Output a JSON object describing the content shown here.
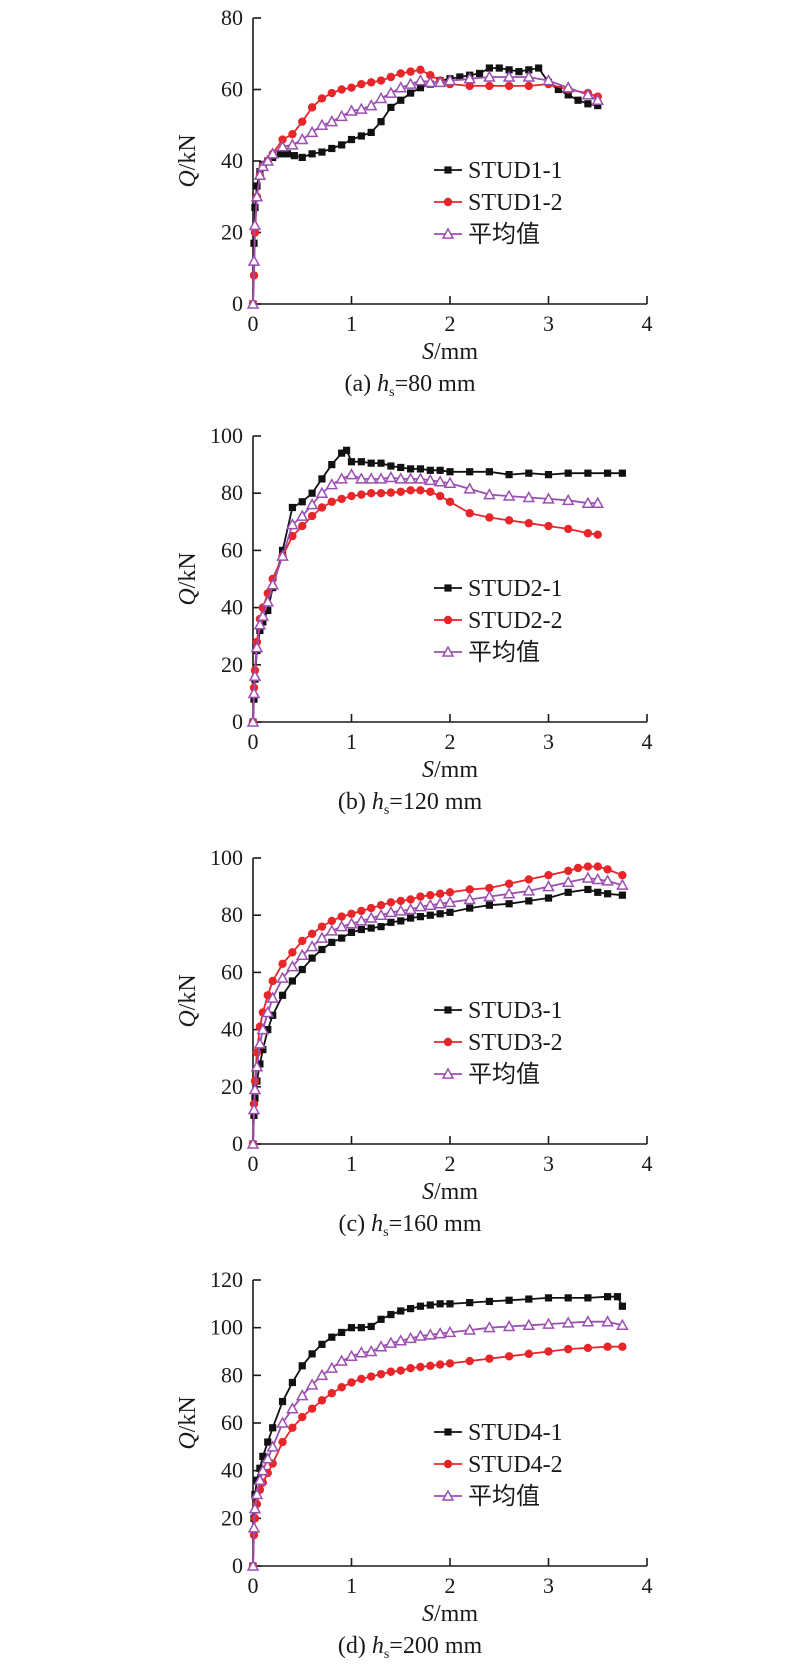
{
  "chart_data": [
    {
      "type": "line",
      "caption_prefix": "(a) ",
      "caption_var": "h",
      "caption_sub": "s",
      "caption_rest": "=80 mm",
      "xlabel_var": "S",
      "xlabel_unit": "/mm",
      "ylabel_var": "Q",
      "ylabel_unit": "/kN",
      "xlim": [
        0,
        4
      ],
      "ylim": [
        0,
        80
      ],
      "xticks": [
        0,
        1,
        2,
        3,
        4
      ],
      "yticks": [
        0,
        20,
        40,
        60,
        80
      ],
      "grid": false,
      "legend_position": "bottom-right",
      "series": [
        {
          "name": "STUD1-1",
          "color": "#111111",
          "marker": "square",
          "x": [
            0,
            0.01,
            0.02,
            0.04,
            0.07,
            0.1,
            0.15,
            0.2,
            0.28,
            0.35,
            0.42,
            0.5,
            0.6,
            0.7,
            0.8,
            0.9,
            1.0,
            1.1,
            1.2,
            1.3,
            1.4,
            1.5,
            1.6,
            1.7,
            1.8,
            1.9,
            2.0,
            2.1,
            2.2,
            2.3,
            2.4,
            2.5,
            2.6,
            2.7,
            2.8,
            2.9,
            3.0,
            3.1,
            3.2,
            3.3,
            3.4,
            3.5
          ],
          "y": [
            0,
            17,
            27,
            33,
            37,
            39,
            40,
            41,
            42,
            42,
            41.5,
            41,
            42,
            42.5,
            43.5,
            44.5,
            46,
            47,
            48,
            51,
            55,
            57,
            59,
            60.5,
            61.5,
            62.5,
            63,
            63.5,
            64,
            64.5,
            66,
            66,
            65.5,
            65,
            65.5,
            66,
            62,
            60,
            58.5,
            57,
            56,
            55.5
          ]
        },
        {
          "name": "STUD1-2",
          "color": "#e8262a",
          "marker": "circle",
          "x": [
            0,
            0.01,
            0.02,
            0.04,
            0.07,
            0.1,
            0.15,
            0.2,
            0.3,
            0.4,
            0.5,
            0.6,
            0.7,
            0.8,
            0.9,
            1.0,
            1.1,
            1.2,
            1.3,
            1.4,
            1.5,
            1.6,
            1.7,
            1.8,
            1.9,
            2.0,
            2.2,
            2.4,
            2.6,
            2.8,
            3.0,
            3.2,
            3.4,
            3.5
          ],
          "y": [
            0,
            8,
            20,
            30,
            36,
            38.5,
            40,
            42,
            46,
            47.5,
            51,
            55,
            57.5,
            59,
            60,
            60.5,
            61.5,
            62,
            62.5,
            63.5,
            64.5,
            65,
            65.5,
            64,
            62.5,
            61.5,
            61,
            61,
            61,
            61,
            61.5,
            60,
            59,
            58
          ]
        },
        {
          "name": "平均值",
          "color": "#9b4fb0",
          "marker": "triangle",
          "x": [
            0,
            0.01,
            0.02,
            0.04,
            0.07,
            0.1,
            0.15,
            0.2,
            0.3,
            0.4,
            0.5,
            0.6,
            0.7,
            0.8,
            0.9,
            1.0,
            1.1,
            1.2,
            1.3,
            1.4,
            1.5,
            1.6,
            1.7,
            1.8,
            1.9,
            2.0,
            2.2,
            2.4,
            2.6,
            2.8,
            3.0,
            3.2,
            3.4,
            3.5
          ],
          "y": [
            0,
            12,
            22,
            30,
            36,
            38.5,
            40,
            42,
            44,
            44.5,
            46,
            48,
            50,
            51,
            52.5,
            54,
            54.5,
            55.5,
            57.5,
            59,
            60.5,
            61.5,
            62.5,
            62,
            62,
            62.5,
            63,
            63.5,
            63.5,
            63.5,
            62.5,
            60.5,
            58.5,
            57
          ]
        }
      ]
    },
    {
      "type": "line",
      "caption_prefix": "(b) ",
      "caption_var": "h",
      "caption_sub": "s",
      "caption_rest": "=120 mm",
      "xlabel_var": "S",
      "xlabel_unit": "/mm",
      "ylabel_var": "Q",
      "ylabel_unit": "/kN",
      "xlim": [
        0,
        4
      ],
      "ylim": [
        0,
        100
      ],
      "xticks": [
        0,
        1,
        2,
        3,
        4
      ],
      "yticks": [
        0,
        20,
        40,
        60,
        80,
        100
      ],
      "grid": false,
      "legend_position": "bottom-right",
      "series": [
        {
          "name": "STUD2-1",
          "color": "#111111",
          "marker": "square",
          "x": [
            0,
            0.01,
            0.02,
            0.04,
            0.07,
            0.1,
            0.15,
            0.2,
            0.3,
            0.4,
            0.5,
            0.6,
            0.7,
            0.8,
            0.9,
            0.95,
            1.0,
            1.1,
            1.2,
            1.3,
            1.4,
            1.5,
            1.6,
            1.7,
            1.8,
            1.9,
            2.0,
            2.2,
            2.4,
            2.6,
            2.8,
            3.0,
            3.2,
            3.4,
            3.6,
            3.75
          ],
          "y": [
            0,
            8,
            15,
            25,
            32,
            35,
            39,
            47,
            60,
            75,
            77,
            80,
            85,
            90,
            94,
            95,
            91,
            91,
            90.5,
            90.5,
            89.5,
            89,
            88.5,
            88.5,
            88,
            88,
            87.5,
            87.5,
            87.5,
            86.5,
            87,
            86.5,
            87,
            87,
            87,
            87
          ]
        },
        {
          "name": "STUD2-2",
          "color": "#e8262a",
          "marker": "circle",
          "x": [
            0,
            0.01,
            0.02,
            0.04,
            0.07,
            0.1,
            0.15,
            0.2,
            0.3,
            0.4,
            0.5,
            0.6,
            0.7,
            0.8,
            0.9,
            1.0,
            1.1,
            1.2,
            1.3,
            1.4,
            1.5,
            1.6,
            1.7,
            1.8,
            1.9,
            2.0,
            2.2,
            2.4,
            2.6,
            2.8,
            3.0,
            3.2,
            3.4,
            3.5
          ],
          "y": [
            0,
            12,
            18,
            28,
            36,
            40,
            45,
            50,
            58,
            65,
            68.5,
            72,
            75,
            77,
            78,
            79,
            79.5,
            80,
            80,
            80.2,
            80.5,
            81,
            81,
            80.5,
            79,
            77,
            73,
            71.5,
            70.5,
            69.5,
            68.5,
            67.5,
            66,
            65.5
          ]
        },
        {
          "name": "平均值",
          "color": "#9b4fb0",
          "marker": "triangle",
          "x": [
            0,
            0.01,
            0.02,
            0.04,
            0.07,
            0.1,
            0.15,
            0.2,
            0.3,
            0.4,
            0.5,
            0.6,
            0.7,
            0.8,
            0.9,
            1.0,
            1.1,
            1.2,
            1.3,
            1.4,
            1.5,
            1.6,
            1.7,
            1.8,
            1.9,
            2.0,
            2.2,
            2.4,
            2.6,
            2.8,
            3.0,
            3.2,
            3.4,
            3.5
          ],
          "y": [
            0,
            10,
            16,
            26,
            34,
            37,
            42,
            48,
            58,
            69,
            72,
            76,
            80,
            83,
            85,
            86.5,
            85,
            85,
            85,
            85.5,
            85,
            85,
            85,
            84.5,
            84,
            83.5,
            81.5,
            79.5,
            79,
            78.5,
            78,
            77.5,
            76.5,
            76.5
          ]
        }
      ]
    },
    {
      "type": "line",
      "caption_prefix": "(c) ",
      "caption_var": "h",
      "caption_sub": "s",
      "caption_rest": "=160 mm",
      "xlabel_var": "S",
      "xlabel_unit": "/mm",
      "ylabel_var": "Q",
      "ylabel_unit": "/kN",
      "xlim": [
        0,
        4
      ],
      "ylim": [
        0,
        100
      ],
      "xticks": [
        0,
        1,
        2,
        3,
        4
      ],
      "yticks": [
        0,
        20,
        40,
        60,
        80,
        100
      ],
      "grid": false,
      "legend_position": "bottom-right",
      "series": [
        {
          "name": "STUD3-1",
          "color": "#111111",
          "marker": "square",
          "x": [
            0,
            0.01,
            0.02,
            0.04,
            0.07,
            0.1,
            0.15,
            0.2,
            0.3,
            0.4,
            0.5,
            0.6,
            0.7,
            0.8,
            0.9,
            1.0,
            1.1,
            1.2,
            1.3,
            1.4,
            1.5,
            1.6,
            1.7,
            1.8,
            1.9,
            2.0,
            2.2,
            2.4,
            2.6,
            2.8,
            3.0,
            3.2,
            3.4,
            3.5,
            3.6,
            3.75
          ],
          "y": [
            0,
            10,
            16,
            22,
            28,
            33,
            40,
            45,
            52,
            57,
            61,
            65,
            68,
            70.5,
            72,
            74,
            75,
            75.5,
            76,
            77.5,
            78,
            79,
            79.5,
            80,
            80.5,
            81,
            82.5,
            83.5,
            84,
            85,
            86,
            88,
            89,
            88,
            87.5,
            87
          ]
        },
        {
          "name": "STUD3-2",
          "color": "#e8262a",
          "marker": "circle",
          "x": [
            0,
            0.01,
            0.02,
            0.04,
            0.07,
            0.1,
            0.15,
            0.2,
            0.3,
            0.4,
            0.5,
            0.6,
            0.7,
            0.8,
            0.9,
            1.0,
            1.1,
            1.2,
            1.3,
            1.4,
            1.5,
            1.6,
            1.7,
            1.8,
            1.9,
            2.0,
            2.2,
            2.4,
            2.6,
            2.8,
            3.0,
            3.2,
            3.3,
            3.4,
            3.5,
            3.6,
            3.75
          ],
          "y": [
            0,
            14,
            22,
            32,
            41,
            46,
            52,
            57,
            63,
            67,
            71,
            73.5,
            76,
            78,
            79.5,
            80.5,
            81.5,
            82.5,
            83.5,
            84.5,
            85,
            85.5,
            86.5,
            87,
            87.5,
            88,
            89,
            89.5,
            91,
            92.5,
            94,
            95.5,
            96.5,
            97,
            97,
            96,
            94
          ]
        },
        {
          "name": "平均值",
          "color": "#9b4fb0",
          "marker": "triangle",
          "x": [
            0,
            0.01,
            0.02,
            0.04,
            0.07,
            0.1,
            0.15,
            0.2,
            0.3,
            0.4,
            0.5,
            0.6,
            0.7,
            0.8,
            0.9,
            1.0,
            1.1,
            1.2,
            1.3,
            1.4,
            1.5,
            1.6,
            1.7,
            1.8,
            1.9,
            2.0,
            2.2,
            2.4,
            2.6,
            2.8,
            3.0,
            3.2,
            3.4,
            3.5,
            3.6,
            3.75
          ],
          "y": [
            0,
            12,
            19,
            27,
            35,
            40,
            46,
            51,
            58,
            62,
            66,
            69,
            72,
            74.5,
            76,
            77,
            78,
            79,
            80,
            81,
            81.5,
            82,
            83,
            83.5,
            84,
            84.5,
            85.5,
            86.5,
            87.5,
            88.5,
            90,
            91.5,
            93,
            92.5,
            92,
            90.5
          ]
        }
      ]
    },
    {
      "type": "line",
      "caption_prefix": "(d) ",
      "caption_var": "h",
      "caption_sub": "s",
      "caption_rest": "=200 mm",
      "xlabel_var": "S",
      "xlabel_unit": "/mm",
      "ylabel_var": "Q",
      "ylabel_unit": "/kN",
      "xlim": [
        0,
        4
      ],
      "ylim": [
        0,
        120
      ],
      "xticks": [
        0,
        1,
        2,
        3,
        4
      ],
      "yticks": [
        0,
        20,
        40,
        60,
        80,
        100,
        120
      ],
      "grid": false,
      "legend_position": "bottom-right",
      "series": [
        {
          "name": "STUD4-1",
          "color": "#111111",
          "marker": "square",
          "x": [
            0,
            0.01,
            0.02,
            0.04,
            0.07,
            0.1,
            0.15,
            0.2,
            0.3,
            0.4,
            0.5,
            0.6,
            0.7,
            0.8,
            0.9,
            1.0,
            1.1,
            1.2,
            1.3,
            1.4,
            1.5,
            1.6,
            1.7,
            1.8,
            1.9,
            2.0,
            2.2,
            2.4,
            2.6,
            2.8,
            3.0,
            3.2,
            3.4,
            3.6,
            3.7,
            3.75
          ],
          "y": [
            0,
            20,
            30,
            36,
            41,
            46,
            52,
            58,
            69,
            77,
            84,
            89,
            93,
            96,
            98,
            100,
            100,
            100.5,
            103.5,
            105.5,
            107,
            108,
            109,
            109.5,
            110,
            110,
            110.5,
            111,
            111.5,
            112,
            112.5,
            112.5,
            112.5,
            113,
            113,
            109
          ]
        },
        {
          "name": "STUD4-2",
          "color": "#e8262a",
          "marker": "circle",
          "x": [
            0,
            0.01,
            0.02,
            0.04,
            0.07,
            0.1,
            0.15,
            0.2,
            0.3,
            0.4,
            0.5,
            0.6,
            0.7,
            0.8,
            0.9,
            1.0,
            1.1,
            1.2,
            1.3,
            1.4,
            1.5,
            1.6,
            1.7,
            1.8,
            1.9,
            2.0,
            2.2,
            2.4,
            2.6,
            2.8,
            3.0,
            3.2,
            3.4,
            3.6,
            3.75
          ],
          "y": [
            0,
            13,
            20,
            26,
            32,
            35,
            39,
            43,
            52,
            58,
            62.5,
            66,
            69.5,
            72.5,
            75,
            77,
            78.5,
            79.5,
            80.5,
            81.5,
            82,
            83,
            83.5,
            84,
            84.5,
            85,
            86,
            87,
            88,
            89,
            90,
            91,
            91.5,
            92,
            92
          ]
        },
        {
          "name": "平均值",
          "color": "#9b4fb0",
          "marker": "triangle",
          "x": [
            0,
            0.01,
            0.02,
            0.04,
            0.07,
            0.1,
            0.15,
            0.2,
            0.3,
            0.4,
            0.5,
            0.6,
            0.7,
            0.8,
            0.9,
            1.0,
            1.1,
            1.2,
            1.3,
            1.4,
            1.5,
            1.6,
            1.7,
            1.8,
            1.9,
            2.0,
            2.2,
            2.4,
            2.6,
            2.8,
            3.0,
            3.2,
            3.4,
            3.6,
            3.75
          ],
          "y": [
            0,
            16,
            24,
            30,
            36,
            40,
            45,
            50,
            60,
            66,
            71.5,
            76,
            80,
            83,
            86,
            88,
            89.5,
            90,
            92,
            93.5,
            94.5,
            95.5,
            96.5,
            97,
            97.5,
            98,
            99,
            100,
            100.5,
            101,
            101.5,
            102,
            102.5,
            102.5,
            101
          ]
        }
      ]
    }
  ]
}
